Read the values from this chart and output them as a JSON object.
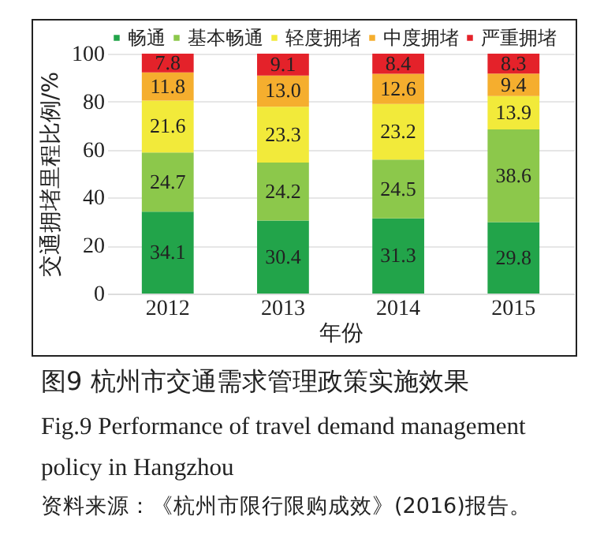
{
  "chart_data": {
    "type": "bar",
    "stacked": true,
    "title": "图9  杭州市交通需求管理政策实施效果",
    "subtitle": "Fig.9  Performance of travel demand management policy in Hangzhou",
    "annotations": [
      "资料来源：《杭州市限行限购成效》(2016)报告。"
    ],
    "xlabel": "年份",
    "ylabel": "交通拥堵里程比例/%",
    "categories": [
      "2012",
      "2013",
      "2014",
      "2015"
    ],
    "series": [
      {
        "name": "畅通",
        "color": "#22a44a",
        "values": [
          34.1,
          30.4,
          31.3,
          29.8
        ],
        "value_labels": [
          "34.1",
          "30.4",
          "31.3",
          "29.8"
        ]
      },
      {
        "name": "基本畅通",
        "color": "#8cc84b",
        "values": [
          24.7,
          24.2,
          24.5,
          38.6
        ],
        "value_labels": [
          "24.7",
          "24.2",
          "24.5",
          "38.6"
        ]
      },
      {
        "name": "轻度拥堵",
        "color": "#f2ea3a",
        "values": [
          21.6,
          23.3,
          23.2,
          13.9
        ],
        "value_labels": [
          "21.6",
          "23.3",
          "23.2",
          "13.9"
        ]
      },
      {
        "name": "中度拥堵",
        "color": "#f5ae2e",
        "values": [
          11.8,
          13.0,
          12.6,
          9.4
        ],
        "value_labels": [
          "11.8",
          "13.0",
          "12.6",
          "9.4"
        ]
      },
      {
        "name": "严重拥堵",
        "color": "#e4222a",
        "values": [
          7.8,
          9.1,
          8.4,
          8.3
        ],
        "value_labels": [
          "7.8",
          "9.1",
          "8.4",
          "8.3"
        ]
      }
    ],
    "ylim": [
      0,
      100
    ],
    "yticks": [
      0,
      20,
      40,
      60,
      80,
      100
    ],
    "grid": "y",
    "legend": "top"
  }
}
